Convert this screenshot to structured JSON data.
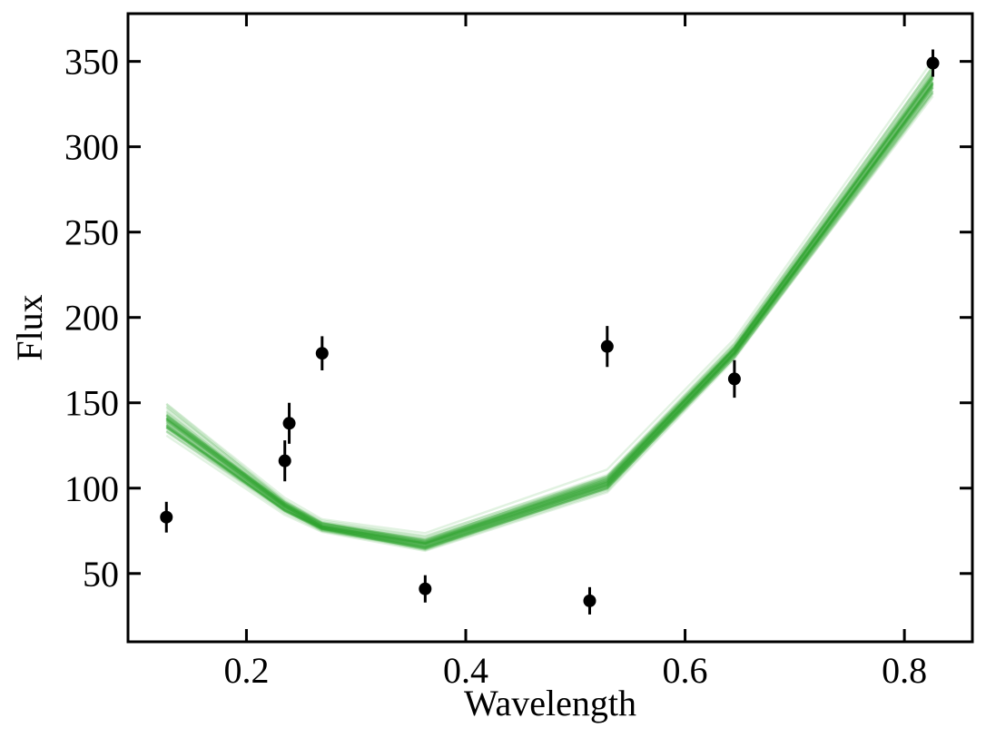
{
  "chart_data": {
    "type": "line",
    "title": "",
    "xlabel": "Wavelength",
    "ylabel": "Flux",
    "xlim": [
      0.092,
      0.862
    ],
    "ylim": [
      10,
      378
    ],
    "xticks": [
      0.2,
      0.4,
      0.6,
      0.8
    ],
    "xtick_labels": [
      "0.2",
      "0.4",
      "0.6",
      "0.8"
    ],
    "yticks": [
      50,
      100,
      150,
      200,
      250,
      300,
      350
    ],
    "ytick_labels": [
      "50",
      "100",
      "150",
      "200",
      "250",
      "300",
      "350"
    ],
    "grid": false,
    "legend": false,
    "colors": {
      "model": "#2ca02c",
      "data": "#000000"
    },
    "data_points": [
      {
        "x": 0.127,
        "y": 83,
        "yerr": 9
      },
      {
        "x": 0.235,
        "y": 116,
        "yerr": 12
      },
      {
        "x": 0.239,
        "y": 138,
        "yerr": 12
      },
      {
        "x": 0.269,
        "y": 179,
        "yerr": 10
      },
      {
        "x": 0.363,
        "y": 41,
        "yerr": 8
      },
      {
        "x": 0.513,
        "y": 34,
        "yerr": 8
      },
      {
        "x": 0.529,
        "y": 183,
        "yerr": 12
      },
      {
        "x": 0.645,
        "y": 164,
        "yerr": 11
      },
      {
        "x": 0.826,
        "y": 349,
        "yerr": 8
      }
    ],
    "model_x": [
      0.127,
      0.235,
      0.269,
      0.363,
      0.529,
      0.645,
      0.826
    ],
    "model_median": [
      141,
      90,
      78,
      68,
      104,
      181,
      340
    ],
    "model_spread": [
      12,
      6,
      5,
      6,
      8,
      7,
      14
    ]
  }
}
